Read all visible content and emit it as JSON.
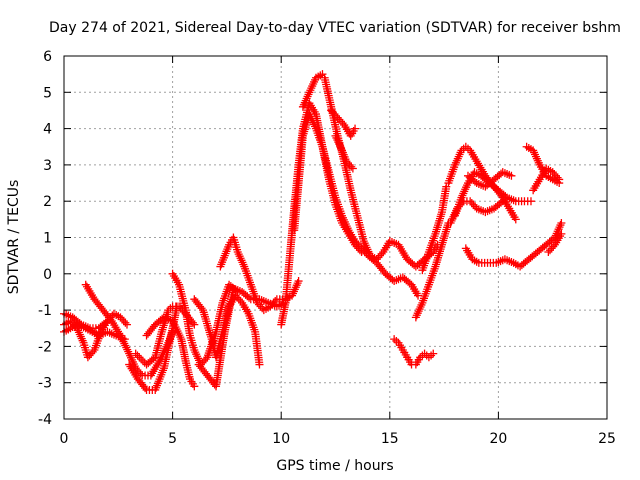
{
  "chart_data": {
    "type": "scatter",
    "title": "Day 274 of 2021, Sidereal Day-to-day VTEC variation (SDTVAR) for receiver bshm",
    "xlabel": "GPS time / hours",
    "ylabel": "SDTVAR / TECUs",
    "xlim": [
      0,
      25
    ],
    "ylim": [
      -4,
      6
    ],
    "xticks": [
      "0",
      "5",
      "10",
      "15",
      "20",
      "25"
    ],
    "yticks": [
      "-4",
      "-3",
      "-2",
      "-1",
      "0",
      "1",
      "2",
      "3",
      "4",
      "5",
      "6"
    ],
    "grid": true,
    "legend": "none",
    "marker": "plus",
    "color": "#ff0000",
    "series": [
      {
        "x": [
          0.0,
          0.4,
          0.8,
          1.2,
          1.6,
          2.0,
          2.3,
          2.6,
          2.9
        ],
        "y": [
          -1.1,
          -1.2,
          -1.4,
          -1.5,
          -1.5,
          -1.3,
          -1.1,
          -1.2,
          -1.4
        ]
      },
      {
        "x": [
          0.0,
          0.3,
          0.6,
          1.0,
          1.3,
          1.6,
          2.0,
          2.4,
          2.8
        ],
        "y": [
          -1.6,
          -1.5,
          -1.4,
          -1.5,
          -1.6,
          -1.7,
          -1.6,
          -1.7,
          -1.8
        ]
      },
      {
        "x": [
          0.0,
          0.3,
          0.6,
          0.9,
          1.1,
          1.4,
          1.7,
          2.0
        ],
        "y": [
          -1.4,
          -1.3,
          -1.5,
          -1.9,
          -2.3,
          -2.1,
          -1.6,
          -1.3
        ]
      },
      {
        "x": [
          1.0,
          1.4,
          1.8,
          2.2,
          2.6,
          3.0,
          3.3,
          3.6,
          4.0,
          4.4,
          4.8,
          5.0
        ],
        "y": [
          -0.3,
          -0.7,
          -1.0,
          -1.3,
          -1.7,
          -2.2,
          -2.6,
          -2.8,
          -2.8,
          -2.4,
          -1.9,
          -1.6
        ]
      },
      {
        "x": [
          3.0,
          3.4,
          3.8,
          4.2,
          4.6,
          5.0,
          5.2
        ],
        "y": [
          -2.5,
          -2.9,
          -3.2,
          -3.2,
          -2.6,
          -1.5,
          -0.9
        ]
      },
      {
        "x": [
          3.3,
          3.8,
          4.2,
          4.5,
          4.8,
          5.0,
          5.3,
          5.6,
          6.0
        ],
        "y": [
          -2.2,
          -2.5,
          -2.3,
          -1.6,
          -1.0,
          -0.9,
          -0.9,
          -1.1,
          -1.4
        ]
      },
      {
        "x": [
          3.8,
          4.2,
          4.6,
          5.0,
          5.4,
          5.6,
          5.8,
          6.0
        ],
        "y": [
          -1.7,
          -1.4,
          -1.2,
          -1.3,
          -1.8,
          -2.4,
          -2.9,
          -3.1
        ]
      },
      {
        "x": [
          5.0,
          5.3,
          5.6,
          5.8,
          6.0,
          6.3,
          6.6,
          7.0,
          7.3,
          7.6,
          8.0
        ],
        "y": [
          0.0,
          -0.3,
          -1.0,
          -1.7,
          -2.1,
          -2.5,
          -2.3,
          -1.6,
          -0.8,
          -0.3,
          -0.5
        ]
      },
      {
        "x": [
          6.0,
          6.4,
          6.8,
          7.0,
          7.3,
          7.6,
          7.9,
          8.2,
          8.5,
          8.8,
          9.0
        ],
        "y": [
          -0.7,
          -1.0,
          -1.8,
          -2.3,
          -1.6,
          -0.9,
          -0.6,
          -0.8,
          -1.1,
          -1.6,
          -2.5
        ]
      },
      {
        "x": [
          6.2,
          6.6,
          7.0,
          7.4,
          7.8,
          8.2,
          8.6,
          9.0,
          9.4,
          9.8,
          10.2
        ],
        "y": [
          -2.5,
          -2.8,
          -3.1,
          -1.6,
          -0.4,
          -0.5,
          -0.7,
          -0.7,
          -0.8,
          -0.9,
          -0.8
        ]
      },
      {
        "x": [
          7.2,
          7.6,
          7.8,
          8.0,
          8.3,
          8.6,
          8.9,
          9.2,
          9.5,
          9.8,
          10.2,
          10.5,
          10.8
        ],
        "y": [
          0.2,
          0.8,
          1.0,
          0.6,
          0.2,
          -0.3,
          -0.8,
          -1.0,
          -0.9,
          -0.7,
          -0.7,
          -0.6,
          -0.2
        ]
      },
      {
        "x": [
          10.0,
          10.2,
          10.4,
          10.6,
          10.8,
          11.0,
          11.3,
          11.6,
          11.9,
          12.2,
          12.5,
          12.8,
          13.1,
          13.4,
          13.7,
          14.0
        ],
        "y": [
          -1.4,
          -0.8,
          0.5,
          1.8,
          3.0,
          4.0,
          4.7,
          4.4,
          3.5,
          2.6,
          1.9,
          1.4,
          1.1,
          0.8,
          0.6,
          0.6
        ]
      },
      {
        "x": [
          10.6,
          10.8,
          11.0,
          11.3,
          11.6,
          11.9,
          12.2,
          12.5,
          12.8,
          13.1,
          13.4,
          13.7,
          14.0,
          14.4,
          14.8,
          15.2,
          15.6,
          16.0,
          16.3
        ],
        "y": [
          1.2,
          2.5,
          3.8,
          4.4,
          4.0,
          3.5,
          2.8,
          2.1,
          1.6,
          1.2,
          0.9,
          0.7,
          0.5,
          0.3,
          0.0,
          -0.2,
          -0.1,
          -0.3,
          -0.6
        ]
      },
      {
        "x": [
          11.0,
          11.3,
          11.6,
          11.9,
          12.0,
          12.3,
          12.6,
          12.9,
          13.2,
          13.5,
          13.8,
          14.1,
          14.4,
          14.7,
          15.0,
          15.4,
          15.8,
          16.2,
          16.6,
          17.0,
          17.2
        ],
        "y": [
          4.6,
          5.0,
          5.4,
          5.5,
          5.4,
          4.6,
          3.8,
          3.1,
          2.3,
          1.6,
          0.9,
          0.5,
          0.4,
          0.6,
          0.9,
          0.8,
          0.4,
          0.2,
          0.4,
          0.6,
          0.8
        ]
      },
      {
        "x": [
          12.3,
          12.6,
          12.9,
          13.2,
          13.4
        ],
        "y": [
          4.5,
          4.3,
          4.1,
          3.8,
          4.0
        ]
      },
      {
        "x": [
          12.5,
          12.8,
          13.0,
          13.3
        ],
        "y": [
          3.8,
          3.4,
          3.1,
          2.9
        ]
      },
      {
        "x": [
          15.2,
          15.4,
          15.6,
          15.8,
          16.0,
          16.2,
          16.4,
          16.6,
          16.8,
          17.0
        ],
        "y": [
          -1.8,
          -1.9,
          -2.1,
          -2.3,
          -2.5,
          -2.5,
          -2.3,
          -2.2,
          -2.3,
          -2.2
        ]
      },
      {
        "x": [
          16.2,
          16.5,
          16.8,
          17.1,
          17.4,
          17.7
        ],
        "y": [
          -1.2,
          -0.8,
          -0.3,
          0.2,
          0.8,
          1.4
        ]
      },
      {
        "x": [
          16.5,
          16.8,
          17.1,
          17.4,
          17.6
        ],
        "y": [
          0.1,
          0.6,
          1.1,
          1.7,
          2.4
        ]
      },
      {
        "x": [
          17.7,
          18.0,
          18.3,
          18.5,
          18.7,
          19.0,
          19.4,
          19.8,
          20.2,
          20.5,
          20.8
        ],
        "y": [
          2.5,
          3.0,
          3.4,
          3.5,
          3.4,
          3.1,
          2.7,
          2.4,
          2.1,
          1.8,
          1.5
        ]
      },
      {
        "x": [
          18.0,
          18.3,
          18.6,
          18.9,
          19.2,
          19.6,
          20.0,
          20.4,
          20.8,
          21.2,
          21.5
        ],
        "y": [
          1.6,
          2.1,
          2.5,
          2.8,
          2.7,
          2.5,
          2.3,
          2.1,
          2.0,
          2.0,
          2.0
        ]
      },
      {
        "x": [
          17.8,
          18.1,
          18.4,
          18.7,
          19.0,
          19.4,
          19.8,
          20.2
        ],
        "y": [
          1.4,
          1.8,
          2.0,
          2.0,
          1.8,
          1.7,
          1.8,
          2.0
        ]
      },
      {
        "x": [
          18.6,
          19.0,
          19.4,
          19.8,
          20.2,
          20.6
        ],
        "y": [
          2.7,
          2.5,
          2.4,
          2.6,
          2.8,
          2.7
        ]
      },
      {
        "x": [
          18.5,
          18.8,
          19.1,
          19.5,
          19.9,
          20.3,
          20.7,
          21.0,
          21.4,
          21.8,
          22.2,
          22.6,
          22.9
        ],
        "y": [
          0.7,
          0.4,
          0.3,
          0.3,
          0.3,
          0.4,
          0.3,
          0.2,
          0.4,
          0.6,
          0.8,
          1.0,
          1.4
        ]
      },
      {
        "x": [
          21.3,
          21.6,
          21.9,
          22.2,
          22.5,
          22.8
        ],
        "y": [
          3.5,
          3.4,
          3.0,
          2.7,
          2.6,
          2.5
        ]
      },
      {
        "x": [
          21.6,
          21.9,
          22.2,
          22.5,
          22.8
        ],
        "y": [
          2.3,
          2.6,
          2.9,
          2.8,
          2.6
        ]
      },
      {
        "x": [
          22.3,
          22.6,
          22.9
        ],
        "y": [
          0.6,
          0.8,
          1.1
        ]
      }
    ]
  }
}
